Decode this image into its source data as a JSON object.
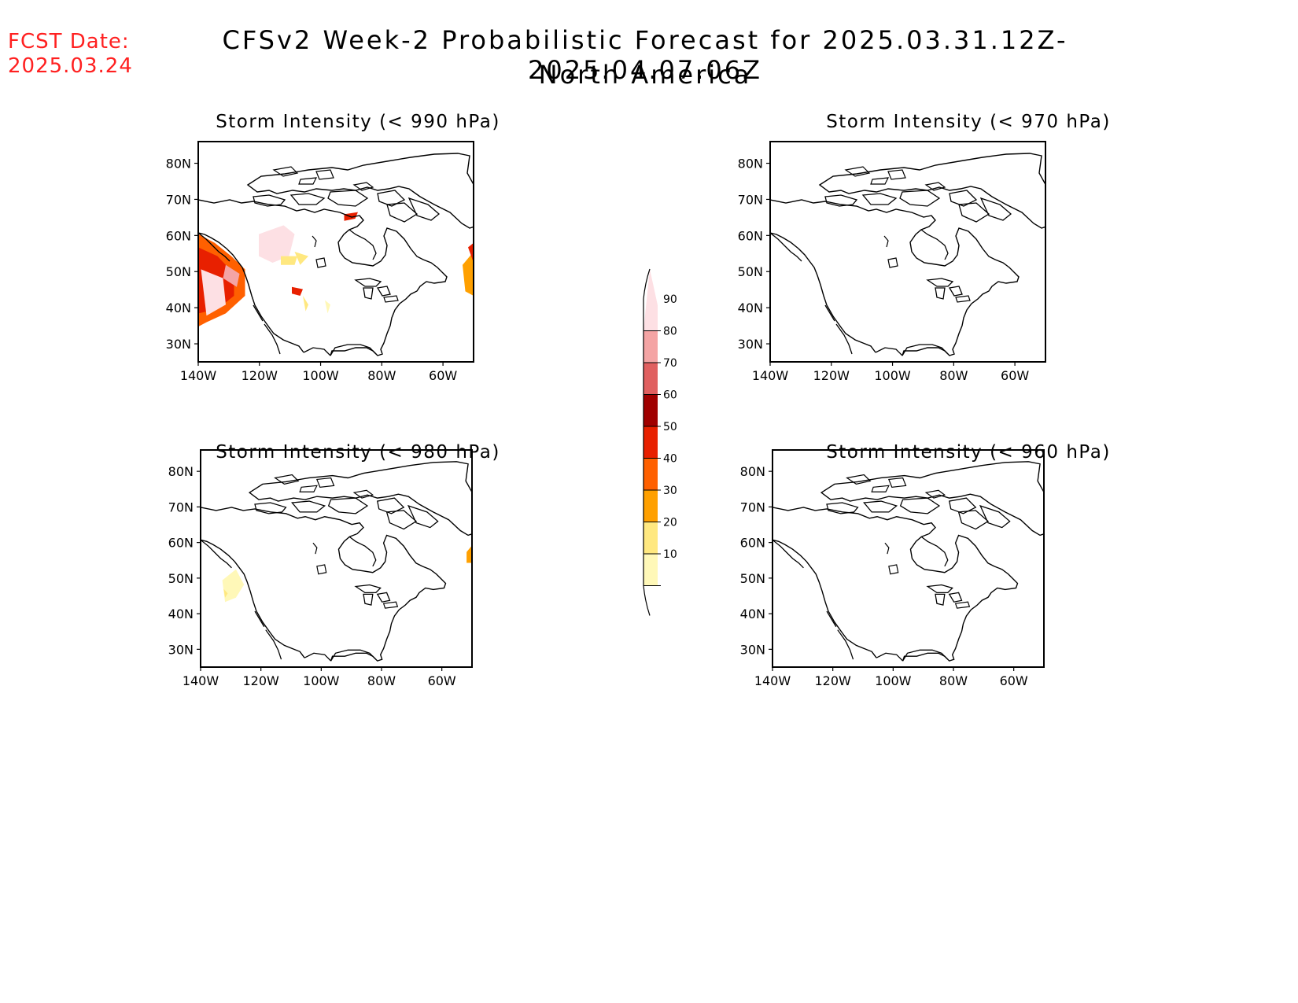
{
  "header": {
    "fcst_label": "FCST Date:",
    "fcst_date": "2025.03.24",
    "title": "CFSv2 Week-2 Probabilistic Forecast for 2025.03.31.12Z-2025.04.07.06Z",
    "region": "North America"
  },
  "panels": [
    {
      "title": "Storm Intensity (< 990 hPa)"
    },
    {
      "title": "Storm Intensity (< 970 hPa)"
    },
    {
      "title": "Storm Intensity (< 980 hPa)"
    },
    {
      "title": "Storm Intensity (< 960 hPa)"
    }
  ],
  "axes": {
    "lat_ticks": [
      "80N",
      "70N",
      "60N",
      "50N",
      "40N",
      "30N"
    ],
    "lon_ticks": [
      "140W",
      "120W",
      "100W",
      "80W",
      "60W"
    ]
  },
  "colorbar": {
    "levels": [
      "10",
      "20",
      "30",
      "40",
      "50",
      "60",
      "70",
      "80",
      "90"
    ],
    "colors": [
      "#fff8b8",
      "#ffe880",
      "#ffa000",
      "#ff6000",
      "#e82000",
      "#a00000",
      "#e06060",
      "#f4a4a4",
      "#fde0e4"
    ]
  }
}
